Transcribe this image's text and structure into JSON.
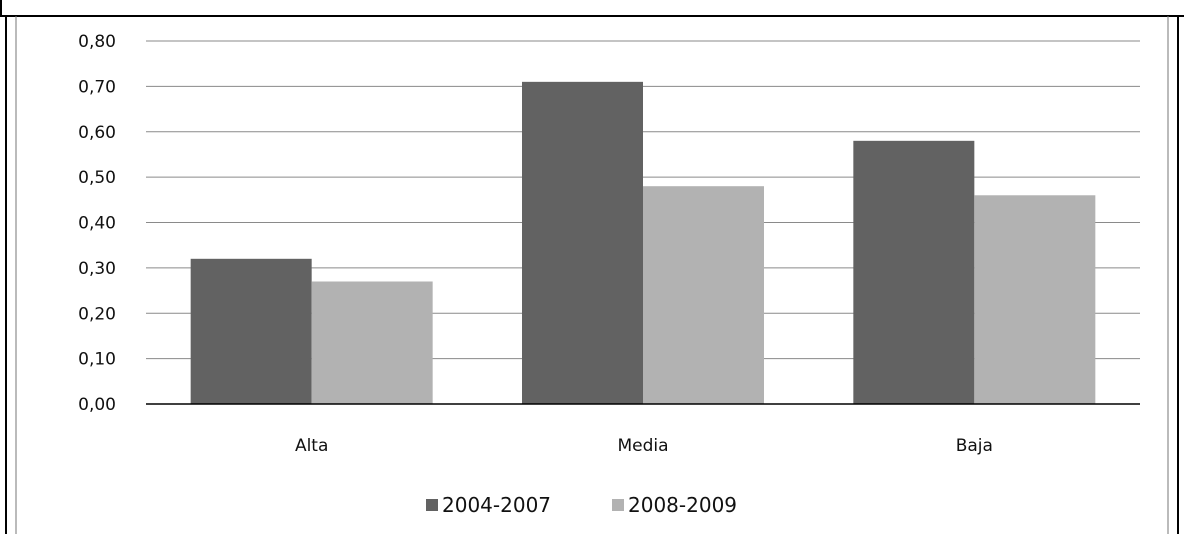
{
  "chart_data": {
    "type": "bar",
    "categories": [
      "Alta",
      "Media",
      "Baja"
    ],
    "series": [
      {
        "name": "2004-2007",
        "values": [
          0.32,
          0.71,
          0.58
        ],
        "color": "#626262"
      },
      {
        "name": "2008-2009",
        "values": [
          0.27,
          0.48,
          0.46
        ],
        "color": "#b2b2b2"
      }
    ],
    "ylim": [
      0,
      0.8
    ],
    "yticks": [
      "0,00",
      "0,10",
      "0,20",
      "0,30",
      "0,40",
      "0,50",
      "0,60",
      "0,70",
      "0,80"
    ],
    "ytick_values": [
      0,
      0.1,
      0.2,
      0.3,
      0.4,
      0.5,
      0.6,
      0.7,
      0.8
    ],
    "grid": true,
    "legend_position": "bottom",
    "title": "",
    "xlabel": "",
    "ylabel": ""
  }
}
